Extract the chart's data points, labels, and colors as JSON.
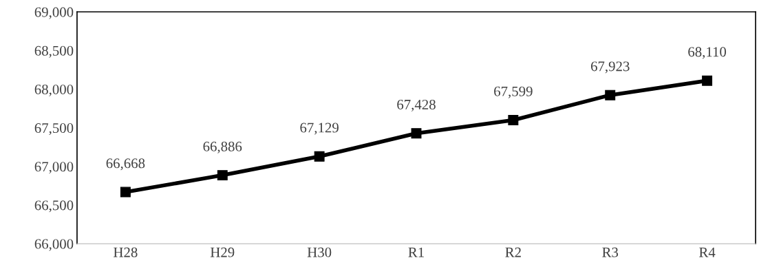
{
  "chart_data": {
    "type": "line",
    "categories": [
      "H28",
      "H29",
      "H30",
      "R1",
      "R2",
      "R3",
      "R4"
    ],
    "series": [
      {
        "color": "#000000",
        "values": [
          66668,
          66886,
          67129,
          67428,
          67599,
          67923,
          68110
        ],
        "value_labels": [
          "66,668",
          "66,886",
          "67,129",
          "67,428",
          "67,599",
          "67,923",
          "68,110"
        ]
      }
    ],
    "ylim": [
      66000,
      69000
    ],
    "yticks": [
      {
        "value": 66000,
        "label": "66,000"
      },
      {
        "value": 66500,
        "label": "66,500"
      },
      {
        "value": 67000,
        "label": "67,000"
      },
      {
        "value": 67500,
        "label": "67,500"
      },
      {
        "value": 68000,
        "label": "68,000"
      },
      {
        "value": 68500,
        "label": "68,500"
      },
      {
        "value": 69000,
        "label": "69,000"
      }
    ],
    "grid": false,
    "legend": false,
    "marker": "square",
    "line_style": "solid"
  }
}
